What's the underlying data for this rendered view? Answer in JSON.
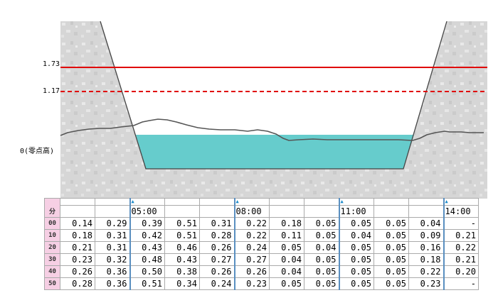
{
  "levels": {
    "warning": "1.73",
    "caution": "1.17",
    "zero_label": "0(零点高)",
    "warning_color": "#e00000",
    "caution_color": "#e00000",
    "water_color": "#66cccc"
  },
  "table": {
    "minute_header": "分",
    "hour_marks": [
      "05:00",
      "08:00",
      "11:00",
      "14:00"
    ],
    "rows": [
      {
        "minute": "00",
        "values": [
          "0.14",
          "0.29",
          "0.39",
          "0.51",
          "0.31",
          "0.22",
          "0.18",
          "0.05",
          "0.05",
          "0.05",
          "0.04",
          "-"
        ]
      },
      {
        "minute": "10",
        "values": [
          "0.18",
          "0.31",
          "0.42",
          "0.51",
          "0.28",
          "0.22",
          "0.11",
          "0.05",
          "0.04",
          "0.05",
          "0.09",
          "0.21"
        ]
      },
      {
        "minute": "20",
        "values": [
          "0.21",
          "0.31",
          "0.43",
          "0.46",
          "0.26",
          "0.24",
          "0.05",
          "0.04",
          "0.05",
          "0.05",
          "0.16",
          "0.22"
        ]
      },
      {
        "minute": "30",
        "values": [
          "0.23",
          "0.32",
          "0.48",
          "0.43",
          "0.27",
          "0.27",
          "0.04",
          "0.05",
          "0.05",
          "0.05",
          "0.18",
          "0.21"
        ]
      },
      {
        "minute": "40",
        "values": [
          "0.26",
          "0.36",
          "0.50",
          "0.38",
          "0.26",
          "0.26",
          "0.04",
          "0.05",
          "0.05",
          "0.05",
          "0.22",
          "0.20"
        ]
      },
      {
        "minute": "50",
        "values": [
          "0.28",
          "0.36",
          "0.51",
          "0.34",
          "0.24",
          "0.23",
          "0.05",
          "0.05",
          "0.05",
          "0.05",
          "0.23",
          "-"
        ]
      }
    ]
  }
}
